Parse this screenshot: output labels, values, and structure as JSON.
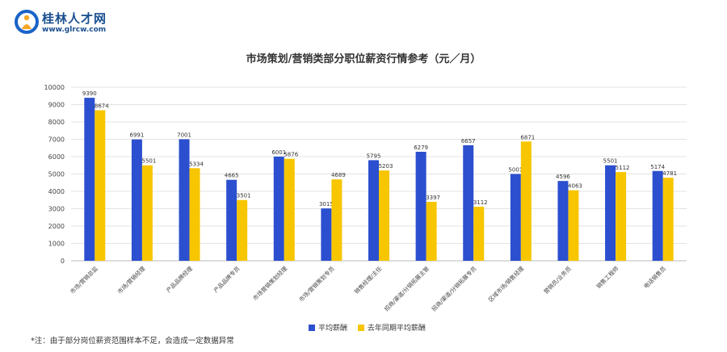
{
  "brand": {
    "name": "桂林人才网",
    "url": "www.glrcw.com",
    "logo_colors": [
      "#1a63c8",
      "#f5a623"
    ]
  },
  "footnote": "*注：由于部分岗位薪资范围样本不足，会造成一定数据异常",
  "chart_data": {
    "type": "bar",
    "title": "市场策划/营销类部分职位薪资行情参考（元／月）",
    "xlabel": "",
    "ylabel": "",
    "ylim": [
      0,
      10000
    ],
    "yticks": [
      0,
      1000,
      2000,
      3000,
      4000,
      5000,
      6000,
      7000,
      8000,
      9000,
      10000
    ],
    "grid": true,
    "legend_position": "bottom",
    "categories": [
      "市场/营销总监",
      "市场/营销经理",
      "产品品牌经理",
      "产品品牌专员",
      "市场营销策划经理",
      "市场/营销策划专员",
      "销售经理/主任",
      "招商/渠道/分销拓展主管",
      "招商/渠道/分销拓展专员",
      "区域市场/销售经理",
      "营销员/业务员",
      "销售工程师",
      "电话销售员"
    ],
    "series": [
      {
        "name": "平均薪酬",
        "color": "#2b4fcf",
        "values": [
          9390,
          6991,
          7001,
          4665,
          6001,
          3015,
          5795,
          6279,
          6657,
          5001,
          4596,
          5501,
          5174
        ]
      },
      {
        "name": "去年同期平均薪酬",
        "color": "#f7c600",
        "values": [
          8674,
          5501,
          5334,
          3501,
          5876,
          4689,
          5203,
          3397,
          3112,
          6871,
          4063,
          5112,
          4781
        ]
      }
    ]
  }
}
